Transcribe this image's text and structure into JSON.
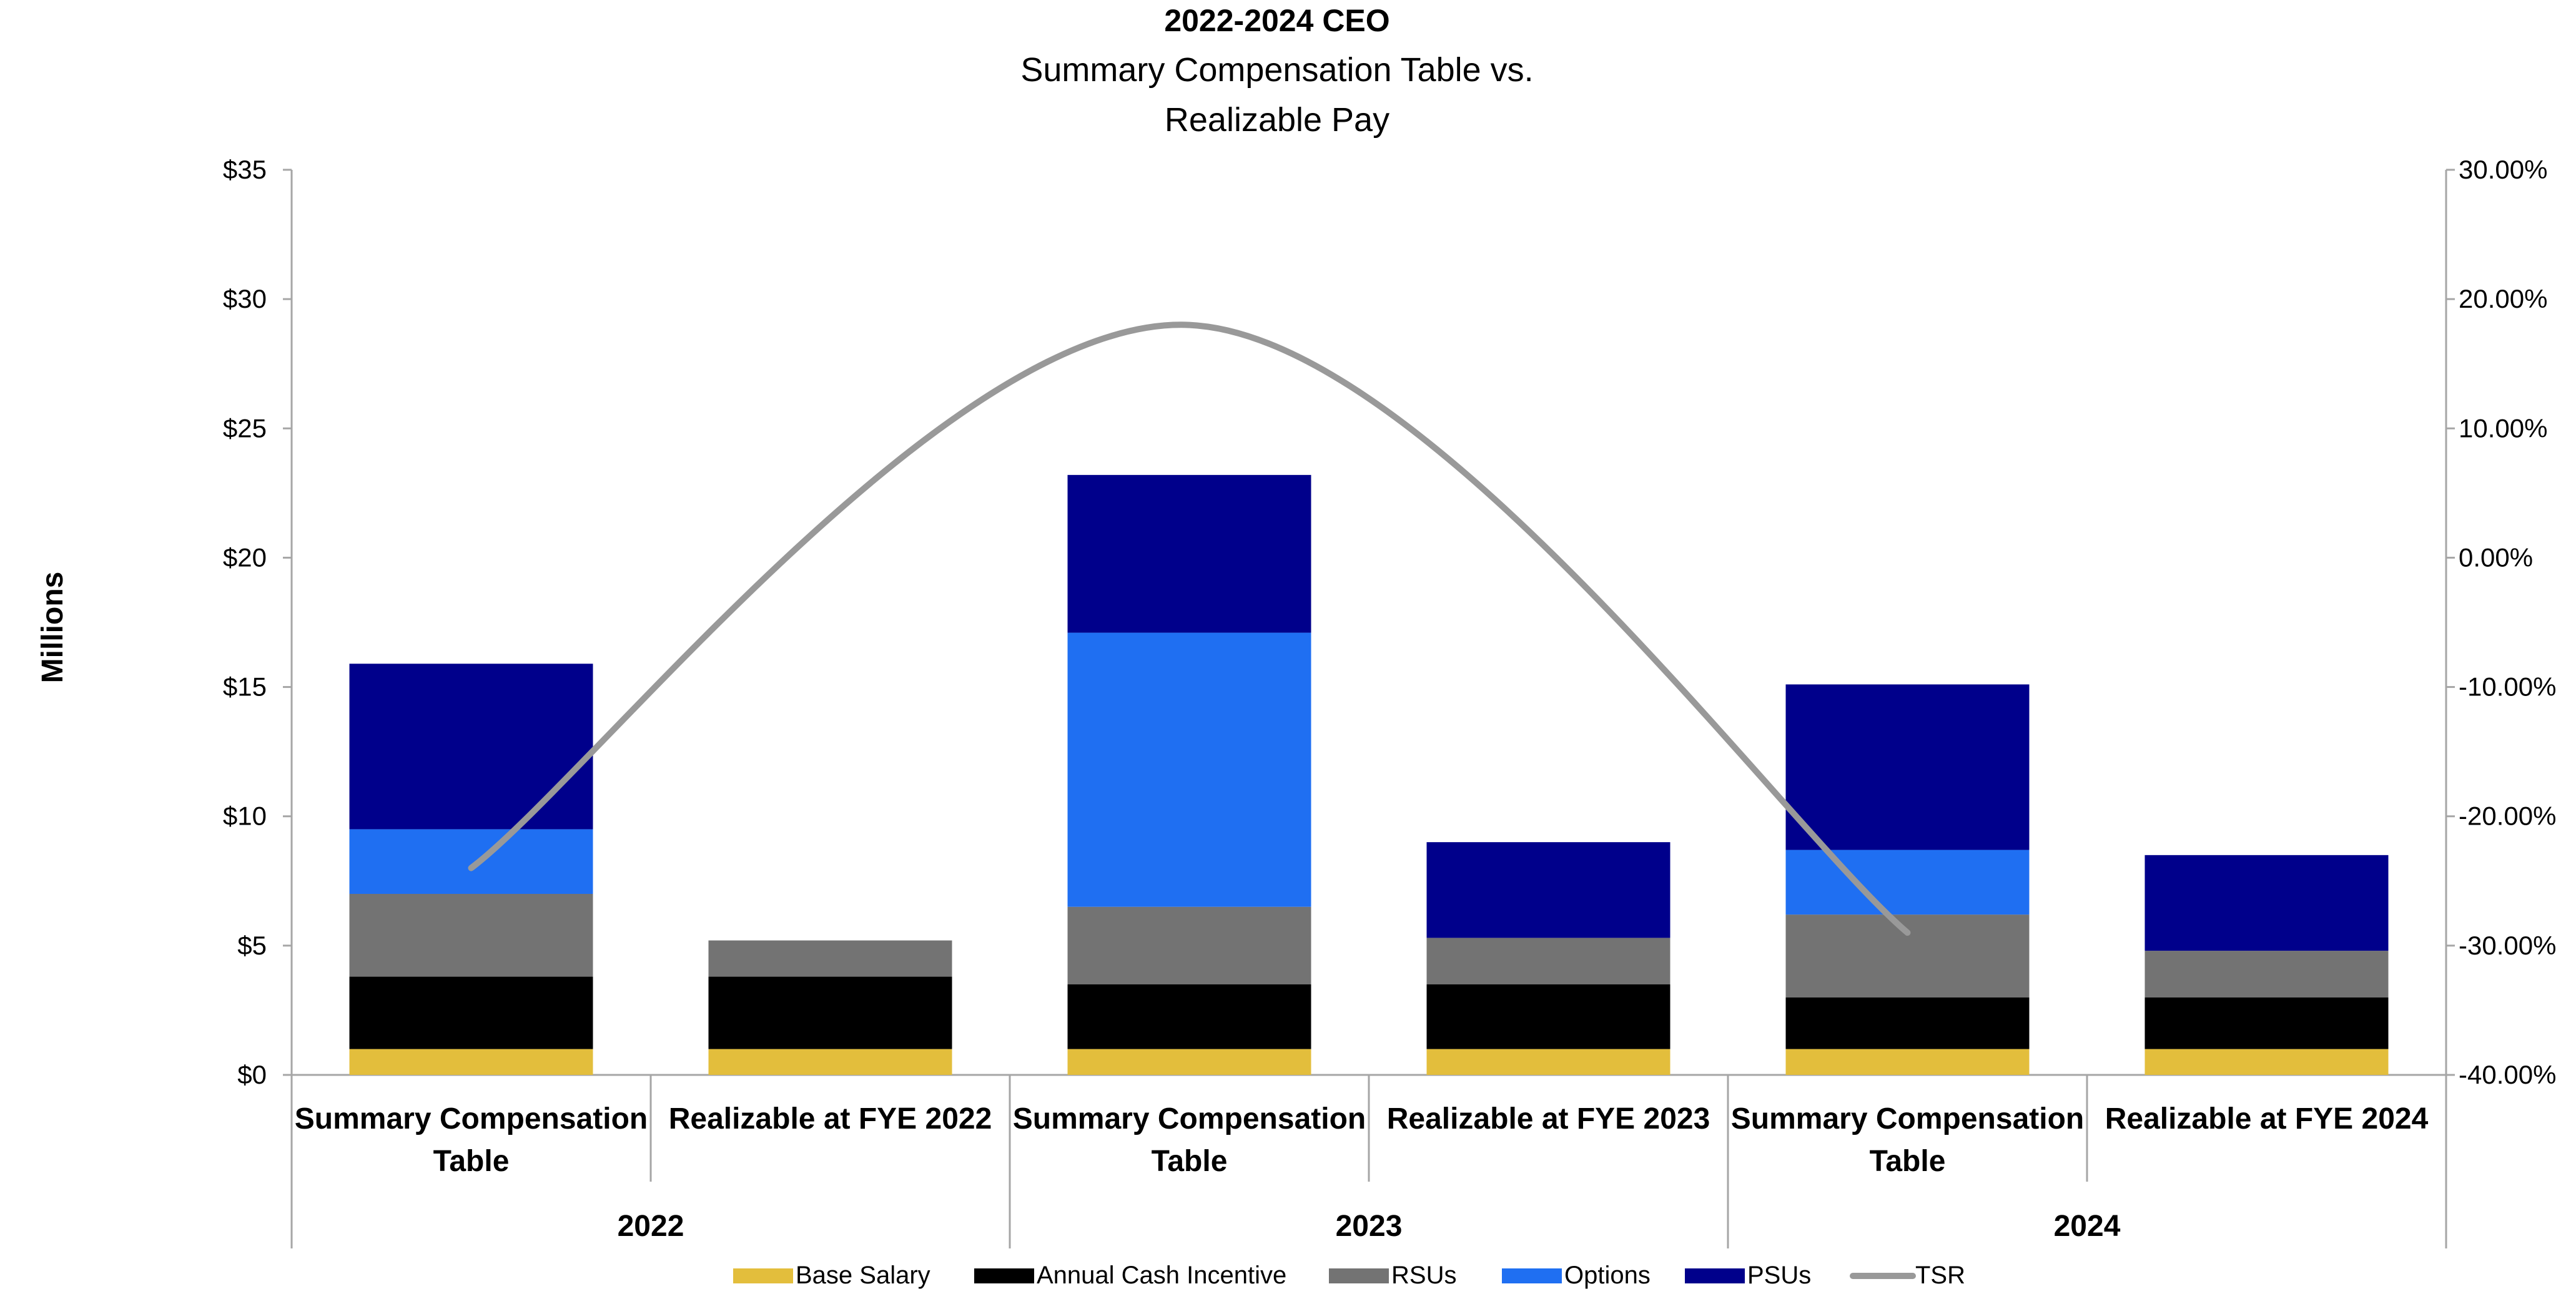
{
  "chart_data": {
    "type": "bar",
    "stacked": true,
    "title": "2022-2024 CEO",
    "subtitle_lines": [
      "Summary Compensation Table vs.",
      "Realizable Pay"
    ],
    "ylabel": "Millions",
    "ylim": [
      0,
      35
    ],
    "yticks": [
      "$0",
      "$5",
      "$10",
      "$15",
      "$20",
      "$25",
      "$30",
      "$35"
    ],
    "y2lim": [
      -40,
      30
    ],
    "y2ticks": [
      "-40.00%",
      "-30.00%",
      "-20.00%",
      "-10.00%",
      "0.00%",
      "10.00%",
      "20.00%",
      "30.00%"
    ],
    "categories": [
      [
        "Summary Compensation",
        "Table"
      ],
      [
        "Realizable at FYE 2022"
      ],
      [
        "Summary Compensation",
        "Table"
      ],
      [
        "Realizable at FYE 2023"
      ],
      [
        "Summary Compensation",
        "Table"
      ],
      [
        "Realizable at FYE 2024"
      ]
    ],
    "groups": [
      "2022",
      "2023",
      "2024"
    ],
    "series": [
      {
        "name": "Base Salary",
        "color": "#E3BE3C",
        "values": [
          1.0,
          1.0,
          1.0,
          1.0,
          1.0,
          1.0
        ]
      },
      {
        "name": "Annual Cash Incentive",
        "color": "#000000",
        "values": [
          2.8,
          2.8,
          2.5,
          2.5,
          2.0,
          2.0
        ]
      },
      {
        "name": "RSUs",
        "color": "#737373",
        "values": [
          3.2,
          1.4,
          3.0,
          1.8,
          3.2,
          1.8
        ]
      },
      {
        "name": "Options",
        "color": "#1F6FF2",
        "values": [
          2.5,
          0,
          10.6,
          0,
          2.5,
          0
        ]
      },
      {
        "name": "PSUs",
        "color": "#00008B",
        "values": [
          6.4,
          0,
          6.1,
          3.7,
          6.4,
          3.7
        ]
      }
    ],
    "line": {
      "name": "TSR",
      "color": "#999999",
      "axis": "secondary",
      "x": [
        0,
        2,
        4
      ],
      "values": [
        -24,
        18,
        -29
      ]
    }
  }
}
